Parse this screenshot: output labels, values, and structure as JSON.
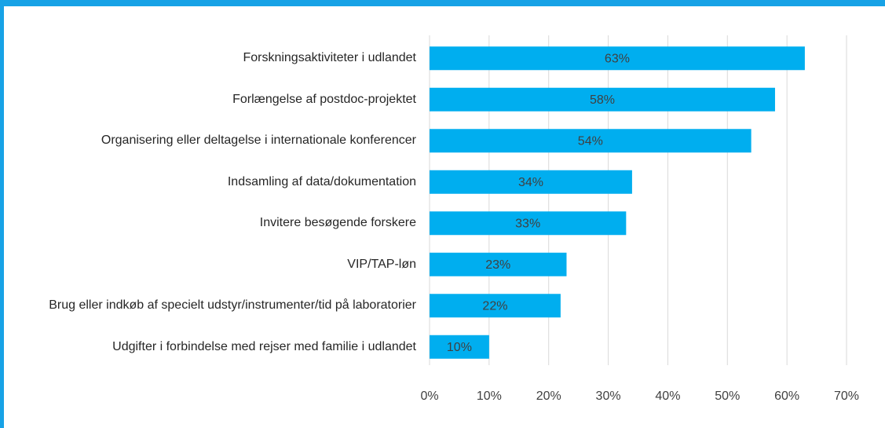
{
  "chart_data": {
    "type": "barh",
    "categories": [
      "Forskningsaktiviteter i udlandet",
      "Forlængelse af postdoc-projektet",
      "Organisering eller deltagelse i internationale konferencer",
      "Indsamling af data/dokumentation",
      "Invitere besøgende forskere",
      "VIP/TAP-løn",
      "Brug eller indkøb af specielt udstyr/instrumenter/tid på laboratorier",
      "Udgifter i forbindelse med rejser med familie i udlandet"
    ],
    "values": [
      63,
      58,
      54,
      34,
      33,
      23,
      22,
      10
    ],
    "value_labels": [
      "63%",
      "58%",
      "54%",
      "34%",
      "33%",
      "23%",
      "22%",
      "10%"
    ],
    "color": "#00aeef",
    "xlim": [
      0,
      70
    ],
    "xticks": [
      {
        "value": 0,
        "label": "0%"
      },
      {
        "value": 10,
        "label": "10%"
      },
      {
        "value": 20,
        "label": "20%"
      },
      {
        "value": 30,
        "label": "30%"
      },
      {
        "value": 40,
        "label": "40%"
      },
      {
        "value": 50,
        "label": "50%"
      },
      {
        "value": 60,
        "label": "60%"
      },
      {
        "value": 70,
        "label": "70%"
      }
    ],
    "grid": true
  }
}
